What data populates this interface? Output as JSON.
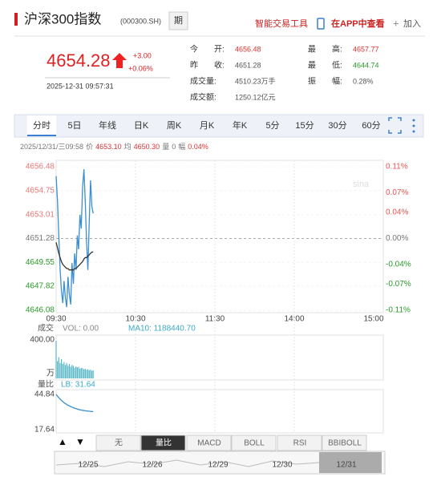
{
  "header": {
    "title": "沪深300指数",
    "code": "(000300.SH)",
    "badge": "期",
    "tools": "智能交易工具",
    "app": "在APP中查看",
    "add": "加入"
  },
  "quote": {
    "price": "4654.28",
    "change": "+3.00",
    "change_pct": "+0.06%",
    "time": "2025-12-31 09:57:31"
  },
  "stats": [
    {
      "label": "今　　开:",
      "value": "4656.48",
      "color": "#d33"
    },
    {
      "label": "昨　　收:",
      "value": "4651.28",
      "color": "#555"
    },
    {
      "label": "成交量:",
      "value": "4510.23万手",
      "color": "#555"
    },
    {
      "label": "成交额:",
      "value": "1250.12亿元",
      "color": "#555"
    },
    {
      "label": "最　　高:",
      "value": "4657.77",
      "color": "#d33"
    },
    {
      "label": "最　　低:",
      "value": "4644.74",
      "color": "#2a9a2a"
    },
    {
      "label": "振　　幅:",
      "value": "0.28%",
      "color": "#555"
    }
  ],
  "tabs": [
    "分时",
    "5日",
    "年线",
    "日K",
    "周K",
    "月K",
    "年K",
    "5分",
    "15分",
    "30分",
    "60分"
  ],
  "active_tab": 0,
  "cursor": {
    "time": "2025/12/31/三09:58",
    "price_label": "价",
    "price": "4653.10",
    "avg_label": "均",
    "avg": "4650.30",
    "vol_label": "量",
    "vol": "0",
    "amp_label": "幅",
    "amp": "0.04%"
  },
  "chart_data": [
    {
      "type": "line",
      "ylim": [
        4646.08,
        4656.48
      ],
      "yticks": [
        4656.48,
        4654.75,
        4653.01,
        4651.28,
        4649.55,
        4647.82,
        4646.08
      ],
      "y2lim": [
        -0.11,
        0.11
      ],
      "y2ticks": [
        {
          "value": 0.11,
          "label": "0.11%"
        },
        {
          "value": 0.07,
          "label": "0.07%"
        },
        {
          "value": 0.04,
          "label": "0.04%"
        },
        {
          "value": 0,
          "label": "0.00%"
        },
        {
          "value": -0.04,
          "label": "-0.04%"
        },
        {
          "value": -0.07,
          "label": "-0.07%"
        },
        {
          "value": -0.11,
          "label": "-0.11%"
        }
      ],
      "xlim": [
        0,
        240
      ],
      "xticks": [
        {
          "value": 0,
          "label": "09:30"
        },
        {
          "value": 60,
          "label": "10:30"
        },
        {
          "value": 120,
          "label": "11:30"
        },
        {
          "value": 180,
          "label": "14:00"
        },
        {
          "value": 240,
          "label": "15:00"
        }
      ],
      "series": [
        {
          "name": "价",
          "color": "#3b8fd0",
          "values": [
            4655.8,
            4654.0,
            4651.5,
            4649.0,
            4647.5,
            4646.6,
            4648.2,
            4647.0,
            4646.3,
            4648.5,
            4647.2,
            4646.5,
            4649.5,
            4648.0,
            4650.2,
            4649.0,
            4651.5,
            4650.5,
            4653.0,
            4652.0,
            4655.0,
            4656.3,
            4654.0,
            4651.0,
            4649.0,
            4652.5,
            4655.5,
            4653.6,
            4653.1
          ]
        },
        {
          "name": "均",
          "color": "#333333",
          "values": [
            4651.0,
            4650.6,
            4650.2,
            4649.9,
            4649.6,
            4649.4,
            4649.3,
            4649.2,
            4649.1,
            4649.1,
            4649.0,
            4649.0,
            4649.0,
            4649.0,
            4649.1,
            4649.1,
            4649.2,
            4649.3,
            4649.4,
            4649.5,
            4649.6,
            4649.8,
            4649.9,
            4649.9,
            4650.0,
            4650.1,
            4650.2,
            4650.3,
            4650.3
          ]
        }
      ]
    },
    {
      "type": "bar",
      "title": "成交",
      "vol_label": "VOL: 0.00",
      "ma_label": "MA10: 1188440.70",
      "unit": "万",
      "color": "#5ab8c8",
      "ylim": [
        0,
        400
      ],
      "yticks": [
        {
          "value": 400,
          "label": "400.00"
        }
      ],
      "values": [
        390,
        180,
        220,
        160,
        200,
        150,
        170,
        140,
        160,
        130,
        150,
        120,
        140,
        130,
        110,
        125,
        115,
        120,
        100,
        110,
        105,
        95,
        100,
        90,
        95,
        85,
        90,
        80,
        85
      ]
    },
    {
      "type": "line",
      "title": "量比",
      "lb_label": "LB: 31.64",
      "color": "#3b8fd0",
      "ylim": [
        17.64,
        44.84
      ],
      "yticks": [
        44.84,
        17.64
      ],
      "values": [
        44.84,
        43.5,
        42.3,
        41.2,
        40.2,
        39.3,
        38.5,
        37.8,
        37.1,
        36.5,
        36.0,
        35.5,
        35.0,
        34.6,
        34.2,
        33.9,
        33.6,
        33.3,
        33.0,
        32.8,
        32.6,
        32.4,
        32.2,
        32.1,
        32.0,
        31.9,
        31.8,
        31.7,
        31.64
      ]
    }
  ],
  "indicators": [
    "无",
    "量比",
    "MACD",
    "BOLL",
    "RSI",
    "BBIBOLL"
  ],
  "active_indicator": 1,
  "nav_dates": [
    "12/25",
    "12/26",
    "12/29",
    "12/30",
    "12/31"
  ]
}
